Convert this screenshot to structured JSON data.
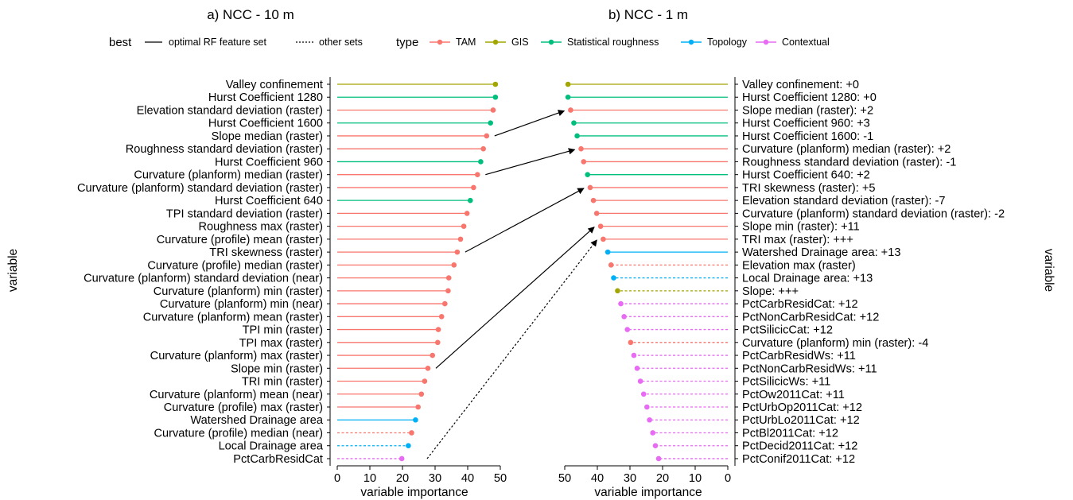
{
  "legend": {
    "best_title": "best",
    "best_items": [
      {
        "label": "optimal RF feature set",
        "dash": "solid"
      },
      {
        "label": "other sets",
        "dash": "dotted"
      }
    ],
    "type_title": "type",
    "type_items": [
      {
        "label": "TAM",
        "color": "#F8766D"
      },
      {
        "label": "GIS",
        "color": "#A3A500"
      },
      {
        "label": "Statistical roughness",
        "color": "#00BF7D"
      },
      {
        "label": "Topology",
        "color": "#00B0F6"
      },
      {
        "label": "Contextual",
        "color": "#E76BF3"
      }
    ]
  },
  "chart_data": [
    {
      "type": "lollipop",
      "title": "a) NCC - 10 m",
      "xlabel": "variable importance",
      "ylabel": "variable",
      "xlim": [
        0,
        50
      ],
      "xticks": [
        0,
        10,
        20,
        30,
        40,
        50
      ],
      "x_reversed": false,
      "categories": [
        "Valley confinement",
        "Hurst Coefficient 1280",
        "Elevation standard deviation (raster)",
        "Hurst Coefficient 1600",
        "Slope median (raster)",
        "Roughness standard deviation (raster)",
        "Hurst Coefficient 960",
        "Curvature (planform) median (raster)",
        "Curvature (planform) standard deviation (raster)",
        "Hurst Coefficient 640",
        "TPI standard deviation (raster)",
        "Roughness max (raster)",
        "Curvature (profile) mean (raster)",
        "TRI skewness (raster)",
        "Curvature (profile) median (raster)",
        "Curvature (planform) standard deviation (near)",
        "Curvature (planform) min (raster)",
        "Curvature (planform) min (near)",
        "Curvature (planform) mean (raster)",
        "TPI min (raster)",
        "TPI max (raster)",
        "Curvature (planform) max (raster)",
        "Slope min (raster)",
        "TRI min (raster)",
        "Curvature (planform) mean (near)",
        "Curvature (profile) max (raster)",
        "Watershed Drainage area",
        "Curvature (profile) median (near)",
        "Local Drainage area",
        "PctCarbResidCat"
      ],
      "values": [
        48.5,
        48.5,
        47.8,
        47.0,
        45.8,
        44.8,
        44.0,
        43.0,
        41.8,
        40.8,
        39.8,
        38.8,
        37.8,
        36.8,
        35.8,
        34.2,
        34.0,
        33.0,
        32.0,
        31.0,
        30.8,
        29.2,
        27.8,
        26.8,
        25.8,
        24.8,
        24.0,
        22.8,
        21.8,
        19.8
      ],
      "types": [
        "GIS",
        "Statistical roughness",
        "TAM",
        "Statistical roughness",
        "TAM",
        "TAM",
        "Statistical roughness",
        "TAM",
        "TAM",
        "Statistical roughness",
        "TAM",
        "TAM",
        "TAM",
        "TAM",
        "TAM",
        "TAM",
        "TAM",
        "TAM",
        "TAM",
        "TAM",
        "TAM",
        "TAM",
        "TAM",
        "TAM",
        "TAM",
        "TAM",
        "Topology",
        "TAM",
        "Topology",
        "Contextual"
      ],
      "best": [
        true,
        true,
        true,
        true,
        true,
        true,
        true,
        true,
        true,
        true,
        true,
        true,
        true,
        true,
        true,
        true,
        true,
        true,
        true,
        true,
        true,
        true,
        true,
        true,
        true,
        true,
        true,
        false,
        false,
        false
      ]
    },
    {
      "type": "lollipop",
      "title": "b) NCC - 1 m",
      "xlabel": "variable importance",
      "ylabel": "variable",
      "xlim": [
        0,
        50
      ],
      "xticks": [
        50,
        40,
        30,
        20,
        10,
        0
      ],
      "x_reversed": true,
      "categories": [
        "Valley confinement: +0",
        "Hurst Coefficient 1280: +0",
        "Slope median (raster): +2",
        "Hurst Coefficient 960: +3",
        "Hurst Coefficient 1600: -1",
        "Curvature (planform) median (raster): +2",
        "Roughness standard deviation (raster): -1",
        "Hurst Coefficient 640: +2",
        "TRI skewness (raster): +5",
        "Elevation standard deviation (raster): -7",
        "Curvature (planform) standard deviation (raster): -2",
        "Slope min (raster): +11",
        "TRI max (raster): +++",
        "Watershed Drainage area: +13",
        "Elevation max (raster)",
        "Local Drainage area: +13",
        "Slope: +++",
        "PctCarbResidCat: +12",
        "PctNonCarbResidCat: +12",
        "PctSilicicCat: +12",
        "Curvature (planform) min (raster): -4",
        "PctCarbResidWs: +11",
        "PctNonCarbResidWs: +11",
        "PctSilicicWs: +11",
        "PctOw2011Cat: +11",
        "PctUrbOp2011Cat: +12",
        "PctUrbLo2011Cat: +12",
        "PctBl2011Cat: +12",
        "PctDecid2011Cat: +12",
        "PctConif2011Cat: +12"
      ],
      "values": [
        49.0,
        49.0,
        48.2,
        47.2,
        46.2,
        45.0,
        44.2,
        43.0,
        42.2,
        41.2,
        40.2,
        39.0,
        38.2,
        36.8,
        35.8,
        35.0,
        33.8,
        32.8,
        31.8,
        30.8,
        29.8,
        28.8,
        27.8,
        26.8,
        25.8,
        24.8,
        24.0,
        23.0,
        22.2,
        21.2
      ],
      "types": [
        "GIS",
        "Statistical roughness",
        "TAM",
        "Statistical roughness",
        "Statistical roughness",
        "TAM",
        "TAM",
        "Statistical roughness",
        "TAM",
        "TAM",
        "TAM",
        "TAM",
        "TAM",
        "Topology",
        "TAM",
        "Topology",
        "GIS",
        "Contextual",
        "Contextual",
        "Contextual",
        "TAM",
        "Contextual",
        "Contextual",
        "Contextual",
        "Contextual",
        "Contextual",
        "Contextual",
        "Contextual",
        "Contextual",
        "Contextual"
      ],
      "best": [
        true,
        true,
        true,
        true,
        true,
        true,
        true,
        true,
        true,
        true,
        true,
        true,
        true,
        true,
        false,
        false,
        false,
        false,
        false,
        false,
        false,
        false,
        false,
        false,
        false,
        false,
        false,
        false,
        false,
        false
      ]
    }
  ],
  "connectors": [
    {
      "from": "Slope median (raster)",
      "to": "Slope median (raster): +2"
    },
    {
      "from": "Curvature (planform) median (raster)",
      "to": "Curvature (planform) median (raster): +2"
    },
    {
      "from": "TRI skewness (raster)",
      "to": "TRI skewness (raster): +5"
    },
    {
      "from": "Slope min (raster)",
      "to": "Slope min (raster): +11"
    },
    {
      "from": "",
      "to": "TRI max (raster): +++"
    }
  ]
}
